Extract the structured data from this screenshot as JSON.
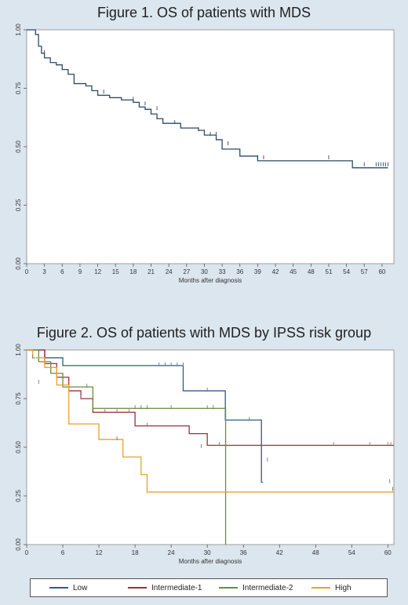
{
  "chart_data": [
    {
      "type": "line",
      "title": "Figure 1. OS of patients with MDS",
      "xlabel": "Months after diagnosis",
      "ylabel": "",
      "xlim": [
        0,
        62
      ],
      "ylim": [
        0,
        1
      ],
      "xticks": [
        "0",
        "3",
        "6",
        "9",
        "12",
        "15",
        "18",
        "21",
        "24",
        "27",
        "30",
        "33",
        "36",
        "39",
        "42",
        "45",
        "48",
        "51",
        "54",
        "57",
        "60"
      ],
      "yticks": [
        "0.00",
        "0.25",
        "0.50",
        "0.75",
        "1.00"
      ],
      "grid": false,
      "series": [
        {
          "color": "#2b4a6b",
          "x": [
            0,
            1.5,
            2,
            2.5,
            3,
            4,
            5,
            6,
            7,
            8,
            10,
            11,
            12,
            14,
            16,
            18,
            19,
            20,
            21,
            22,
            23,
            26,
            29,
            30,
            32,
            33,
            36,
            39,
            55,
            61
          ],
          "y": [
            1.0,
            0.98,
            0.93,
            0.9,
            0.88,
            0.86,
            0.85,
            0.83,
            0.81,
            0.77,
            0.76,
            0.74,
            0.72,
            0.71,
            0.7,
            0.69,
            0.67,
            0.66,
            0.64,
            0.62,
            0.6,
            0.58,
            0.57,
            0.55,
            0.53,
            0.49,
            0.46,
            0.44,
            0.41,
            0.41
          ],
          "censor_x": [
            3,
            8,
            13,
            18,
            20,
            22,
            25,
            29,
            31,
            32,
            34,
            39,
            40,
            51,
            57,
            59,
            59.4,
            59.8,
            60.2,
            60.6,
            61
          ],
          "censor_y": [
            0.9,
            0.78,
            0.73,
            0.7,
            0.68,
            0.66,
            0.6,
            0.57,
            0.55,
            0.55,
            0.51,
            0.45,
            0.45,
            0.45,
            0.42,
            0.42,
            0.42,
            0.42,
            0.42,
            0.42,
            0.42
          ]
        }
      ]
    },
    {
      "type": "line",
      "title": "Figure 2. OS of patients with MDS by IPSS risk group",
      "xlabel": "Months after diagnosis",
      "ylabel": "",
      "xlim": [
        0,
        61
      ],
      "ylim": [
        0,
        1
      ],
      "xticks": [
        "0",
        "6",
        "12",
        "18",
        "24",
        "30",
        "36",
        "42",
        "48",
        "54",
        "60"
      ],
      "yticks": [
        "0.00",
        "0.25",
        "0.50",
        "0.75",
        "1.00"
      ],
      "grid": false,
      "legend_position": "bottom",
      "series": [
        {
          "name": "Low",
          "color": "#2e5c8a",
          "x": [
            0,
            3,
            6,
            26,
            33,
            39,
            39.2
          ],
          "y": [
            1.0,
            0.96,
            0.92,
            0.79,
            0.64,
            0.32,
            0.32
          ],
          "censor_x": [
            22,
            23,
            24,
            25,
            26,
            30,
            37
          ],
          "censor_y": [
            0.92,
            0.92,
            0.92,
            0.92,
            0.92,
            0.79,
            0.64
          ]
        },
        {
          "name": "Intermediate-1",
          "color": "#9b2f3c",
          "x": [
            0,
            3,
            5,
            7,
            9,
            11,
            18,
            27,
            30,
            61
          ],
          "y": [
            1.0,
            0.93,
            0.86,
            0.79,
            0.75,
            0.68,
            0.61,
            0.57,
            0.51,
            0.51
          ],
          "censor_x": [
            9,
            13,
            15,
            17,
            20,
            29,
            32,
            51,
            57,
            60,
            60.5
          ],
          "censor_y": [
            0.75,
            0.68,
            0.68,
            0.68,
            0.61,
            0.5,
            0.51,
            0.51,
            0.51,
            0.51,
            0.51
          ]
        },
        {
          "name": "Intermediate-2",
          "color": "#6b8e3a",
          "x": [
            0,
            2,
            4,
            6,
            11,
            33,
            33.05
          ],
          "y": [
            1.0,
            0.94,
            0.88,
            0.81,
            0.7,
            0.7,
            0.0
          ],
          "censor_x": [
            10,
            18,
            19,
            20,
            24,
            30,
            31
          ],
          "censor_y": [
            0.81,
            0.7,
            0.7,
            0.7,
            0.7,
            0.7,
            0.7
          ]
        },
        {
          "name": "High",
          "color": "#e8a12e",
          "x": [
            0,
            1,
            3,
            5,
            7,
            12,
            16,
            19,
            20,
            61
          ],
          "y": [
            1.0,
            0.96,
            0.91,
            0.82,
            0.62,
            0.54,
            0.45,
            0.36,
            0.27,
            0.27
          ],
          "censor_x": [
            1,
            2,
            15,
            40,
            60.3,
            60.8
          ],
          "censor_y": [
            0.96,
            0.83,
            0.54,
            0.43,
            0.32,
            0.28
          ]
        }
      ]
    }
  ]
}
